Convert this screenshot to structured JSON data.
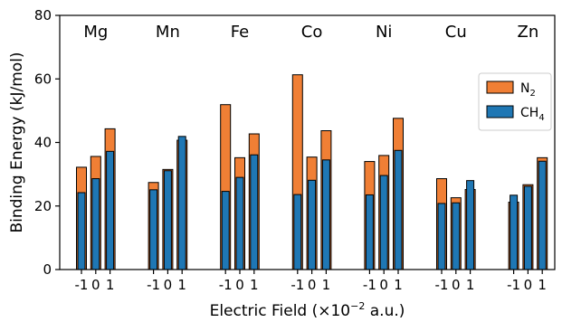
{
  "chart_data": {
    "type": "bar",
    "xlabel_parts": [
      "Electric Field (×10",
      "−2",
      " a.u.)"
    ],
    "ylabel": "Binding Energy (kJ/mol)",
    "ylim": [
      0,
      80
    ],
    "yticks": [
      0,
      20,
      40,
      60,
      80
    ],
    "grid": false,
    "legend_position": "right",
    "field_ticks": [
      "-1",
      "0",
      "1"
    ],
    "groups": [
      "Mg",
      "Mn",
      "Fe",
      "Co",
      "Ni",
      "Cu",
      "Zn"
    ],
    "series": [
      {
        "label": "N",
        "subscript": "2",
        "color": "#f07f35",
        "values": [
          [
            32.2,
            35.6,
            44.3
          ],
          [
            27.4,
            31.5,
            40.7
          ],
          [
            51.9,
            35.2,
            42.7
          ],
          [
            61.3,
            35.4,
            43.7
          ],
          [
            34.0,
            35.9,
            47.6
          ],
          [
            28.6,
            22.6,
            25.2
          ],
          [
            21.2,
            26.7,
            35.2
          ]
        ]
      },
      {
        "label": "CH",
        "subscript": "4",
        "color": "#1f77b4",
        "values": [
          [
            24.2,
            28.6,
            37.2
          ],
          [
            25.1,
            31.1,
            41.9
          ],
          [
            24.6,
            29.0,
            36.1
          ],
          [
            23.6,
            28.1,
            34.5
          ],
          [
            23.5,
            29.6,
            37.5
          ],
          [
            20.8,
            21.0,
            28.0
          ],
          [
            23.4,
            26.2,
            34.1
          ]
        ]
      }
    ]
  }
}
